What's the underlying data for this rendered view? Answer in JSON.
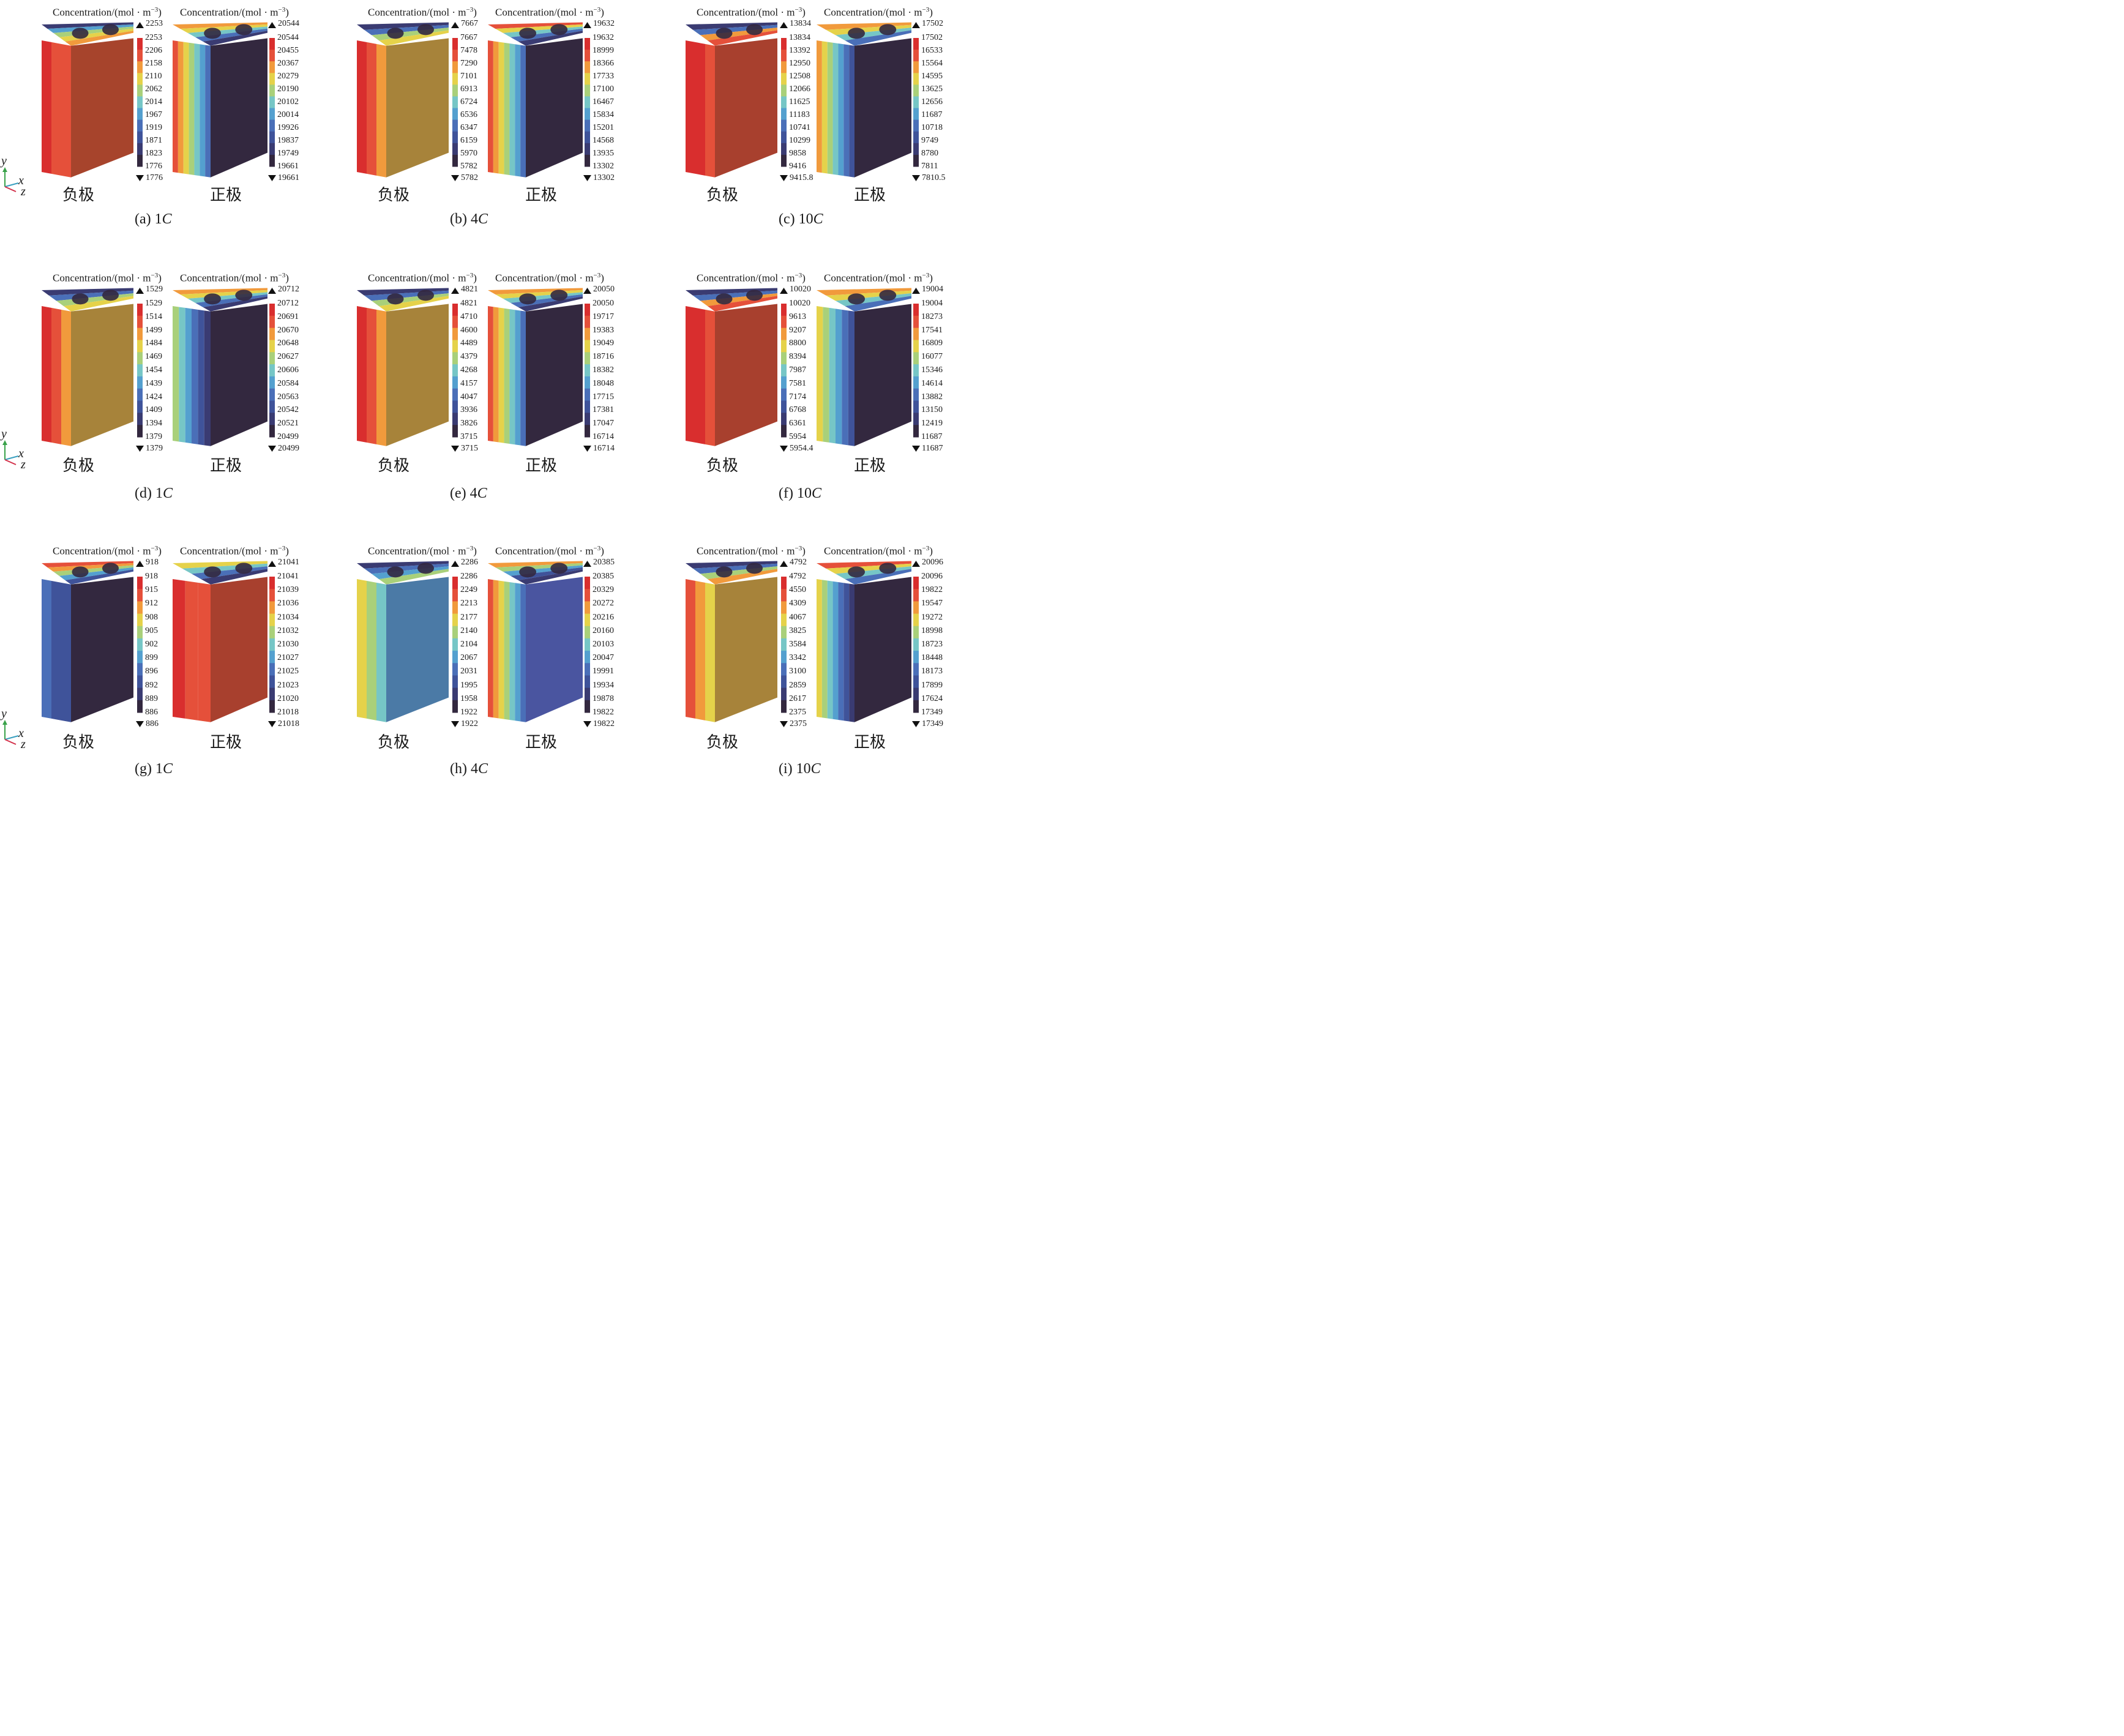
{
  "electrode_labels": {
    "negative": "负极",
    "positive": "正极"
  },
  "colorbar_title_prefix": "Concentration/(mol · m",
  "colorbar_title_sup": "−3",
  "colorbar_title_suffix": ")",
  "axes_triad": {
    "y": "y",
    "x": "x",
    "z": "z"
  },
  "palette": [
    "#33283f",
    "#3a3b72",
    "#3f539a",
    "#4a6fb8",
    "#54a0cf",
    "#76c6c6",
    "#a9d07a",
    "#e5d24a",
    "#f19a3c",
    "#e5503a",
    "#d92e2e"
  ],
  "panels": [
    {
      "id": "a",
      "caption_pre": "(a) 1",
      "caption_rate": "C",
      "negative": {
        "max_marker": "2253",
        "min_marker": "1776",
        "ticks": [
          "2253",
          "2206",
          "2158",
          "2110",
          "2062",
          "2014",
          "1967",
          "1919",
          "1871",
          "1823",
          "1776"
        ]
      },
      "positive": {
        "max_marker": "20544",
        "min_marker": "19661",
        "ticks": [
          "20544",
          "20455",
          "20367",
          "20279",
          "20190",
          "20102",
          "20014",
          "19926",
          "19837",
          "19749",
          "19661"
        ]
      }
    },
    {
      "id": "b",
      "caption_pre": "(b) 4",
      "caption_rate": "C",
      "negative": {
        "max_marker": "7667",
        "min_marker": "5782",
        "ticks": [
          "7667",
          "7478",
          "7290",
          "7101",
          "6913",
          "6724",
          "6536",
          "6347",
          "6159",
          "5970",
          "5782"
        ]
      },
      "positive": {
        "max_marker": "19632",
        "min_marker": "13302",
        "ticks": [
          "19632",
          "18999",
          "18366",
          "17733",
          "17100",
          "16467",
          "15834",
          "15201",
          "14568",
          "13935",
          "13302"
        ]
      }
    },
    {
      "id": "c",
      "caption_pre": "(c) 10",
      "caption_rate": "C",
      "negative": {
        "max_marker": "13834",
        "min_marker": "9415.8",
        "ticks": [
          "13834",
          "13392",
          "12950",
          "12508",
          "12066",
          "11625",
          "11183",
          "10741",
          "10299",
          "9858",
          "9416"
        ]
      },
      "positive": {
        "max_marker": "17502",
        "min_marker": "7810.5",
        "ticks": [
          "17502",
          "16533",
          "15564",
          "14595",
          "13625",
          "12656",
          "11687",
          "10718",
          "9749",
          "8780",
          "7811"
        ]
      }
    },
    {
      "id": "d",
      "caption_pre": "(d) 1",
      "caption_rate": "C",
      "negative": {
        "max_marker": "1529",
        "min_marker": "1379",
        "ticks": [
          "1529",
          "1514",
          "1499",
          "1484",
          "1469",
          "1454",
          "1439",
          "1424",
          "1409",
          "1394",
          "1379"
        ]
      },
      "positive": {
        "max_marker": "20712",
        "min_marker": "20499",
        "ticks": [
          "20712",
          "20691",
          "20670",
          "20648",
          "20627",
          "20606",
          "20584",
          "20563",
          "20542",
          "20521",
          "20499"
        ]
      }
    },
    {
      "id": "e",
      "caption_pre": "(e) 4",
      "caption_rate": "C",
      "negative": {
        "max_marker": "4821",
        "min_marker": "3715",
        "ticks": [
          "4821",
          "4710",
          "4600",
          "4489",
          "4379",
          "4268",
          "4157",
          "4047",
          "3936",
          "3826",
          "3715"
        ]
      },
      "positive": {
        "max_marker": "20050",
        "min_marker": "16714",
        "ticks": [
          "20050",
          "19717",
          "19383",
          "19049",
          "18716",
          "18382",
          "18048",
          "17715",
          "17381",
          "17047",
          "16714"
        ]
      }
    },
    {
      "id": "f",
      "caption_pre": "(f) 10",
      "caption_rate": "C",
      "negative": {
        "max_marker": "10020",
        "min_marker": "5954.4",
        "ticks": [
          "10020",
          "9613",
          "9207",
          "8800",
          "8394",
          "7987",
          "7581",
          "7174",
          "6768",
          "6361",
          "5954"
        ]
      },
      "positive": {
        "max_marker": "19004",
        "min_marker": "11687",
        "ticks": [
          "19004",
          "18273",
          "17541",
          "16809",
          "16077",
          "15346",
          "14614",
          "13882",
          "13150",
          "12419",
          "11687"
        ]
      }
    },
    {
      "id": "g",
      "caption_pre": "(g) 1",
      "caption_rate": "C",
      "negative": {
        "max_marker": "918",
        "min_marker": "886",
        "ticks": [
          "918",
          "915",
          "912",
          "908",
          "905",
          "902",
          "899",
          "896",
          "892",
          "889",
          "886"
        ]
      },
      "positive": {
        "max_marker": "21041",
        "min_marker": "21018",
        "ticks": [
          "21041",
          "21039",
          "21036",
          "21034",
          "21032",
          "21030",
          "21027",
          "21025",
          "21023",
          "21020",
          "21018"
        ]
      }
    },
    {
      "id": "h",
      "caption_pre": "(h) 4",
      "caption_rate": "C",
      "negative": {
        "max_marker": "2286",
        "min_marker": "1922",
        "ticks": [
          "2286",
          "2249",
          "2213",
          "2177",
          "2140",
          "2104",
          "2067",
          "2031",
          "1995",
          "1958",
          "1922"
        ]
      },
      "positive": {
        "max_marker": "20385",
        "min_marker": "19822",
        "ticks": [
          "20385",
          "20329",
          "20272",
          "20216",
          "20160",
          "20103",
          "20047",
          "19991",
          "19934",
          "19878",
          "19822"
        ]
      }
    },
    {
      "id": "i",
      "caption_pre": "(i) 10",
      "caption_rate": "C",
      "negative": {
        "max_marker": "4792",
        "min_marker": "2375",
        "ticks": [
          "4792",
          "4550",
          "4309",
          "4067",
          "3825",
          "3584",
          "3342",
          "3100",
          "2859",
          "2617",
          "2375"
        ]
      },
      "positive": {
        "max_marker": "20096",
        "min_marker": "17349",
        "ticks": [
          "20096",
          "19822",
          "19547",
          "19272",
          "18998",
          "18723",
          "18448",
          "18173",
          "17899",
          "17624",
          "17349"
        ]
      }
    }
  ]
}
